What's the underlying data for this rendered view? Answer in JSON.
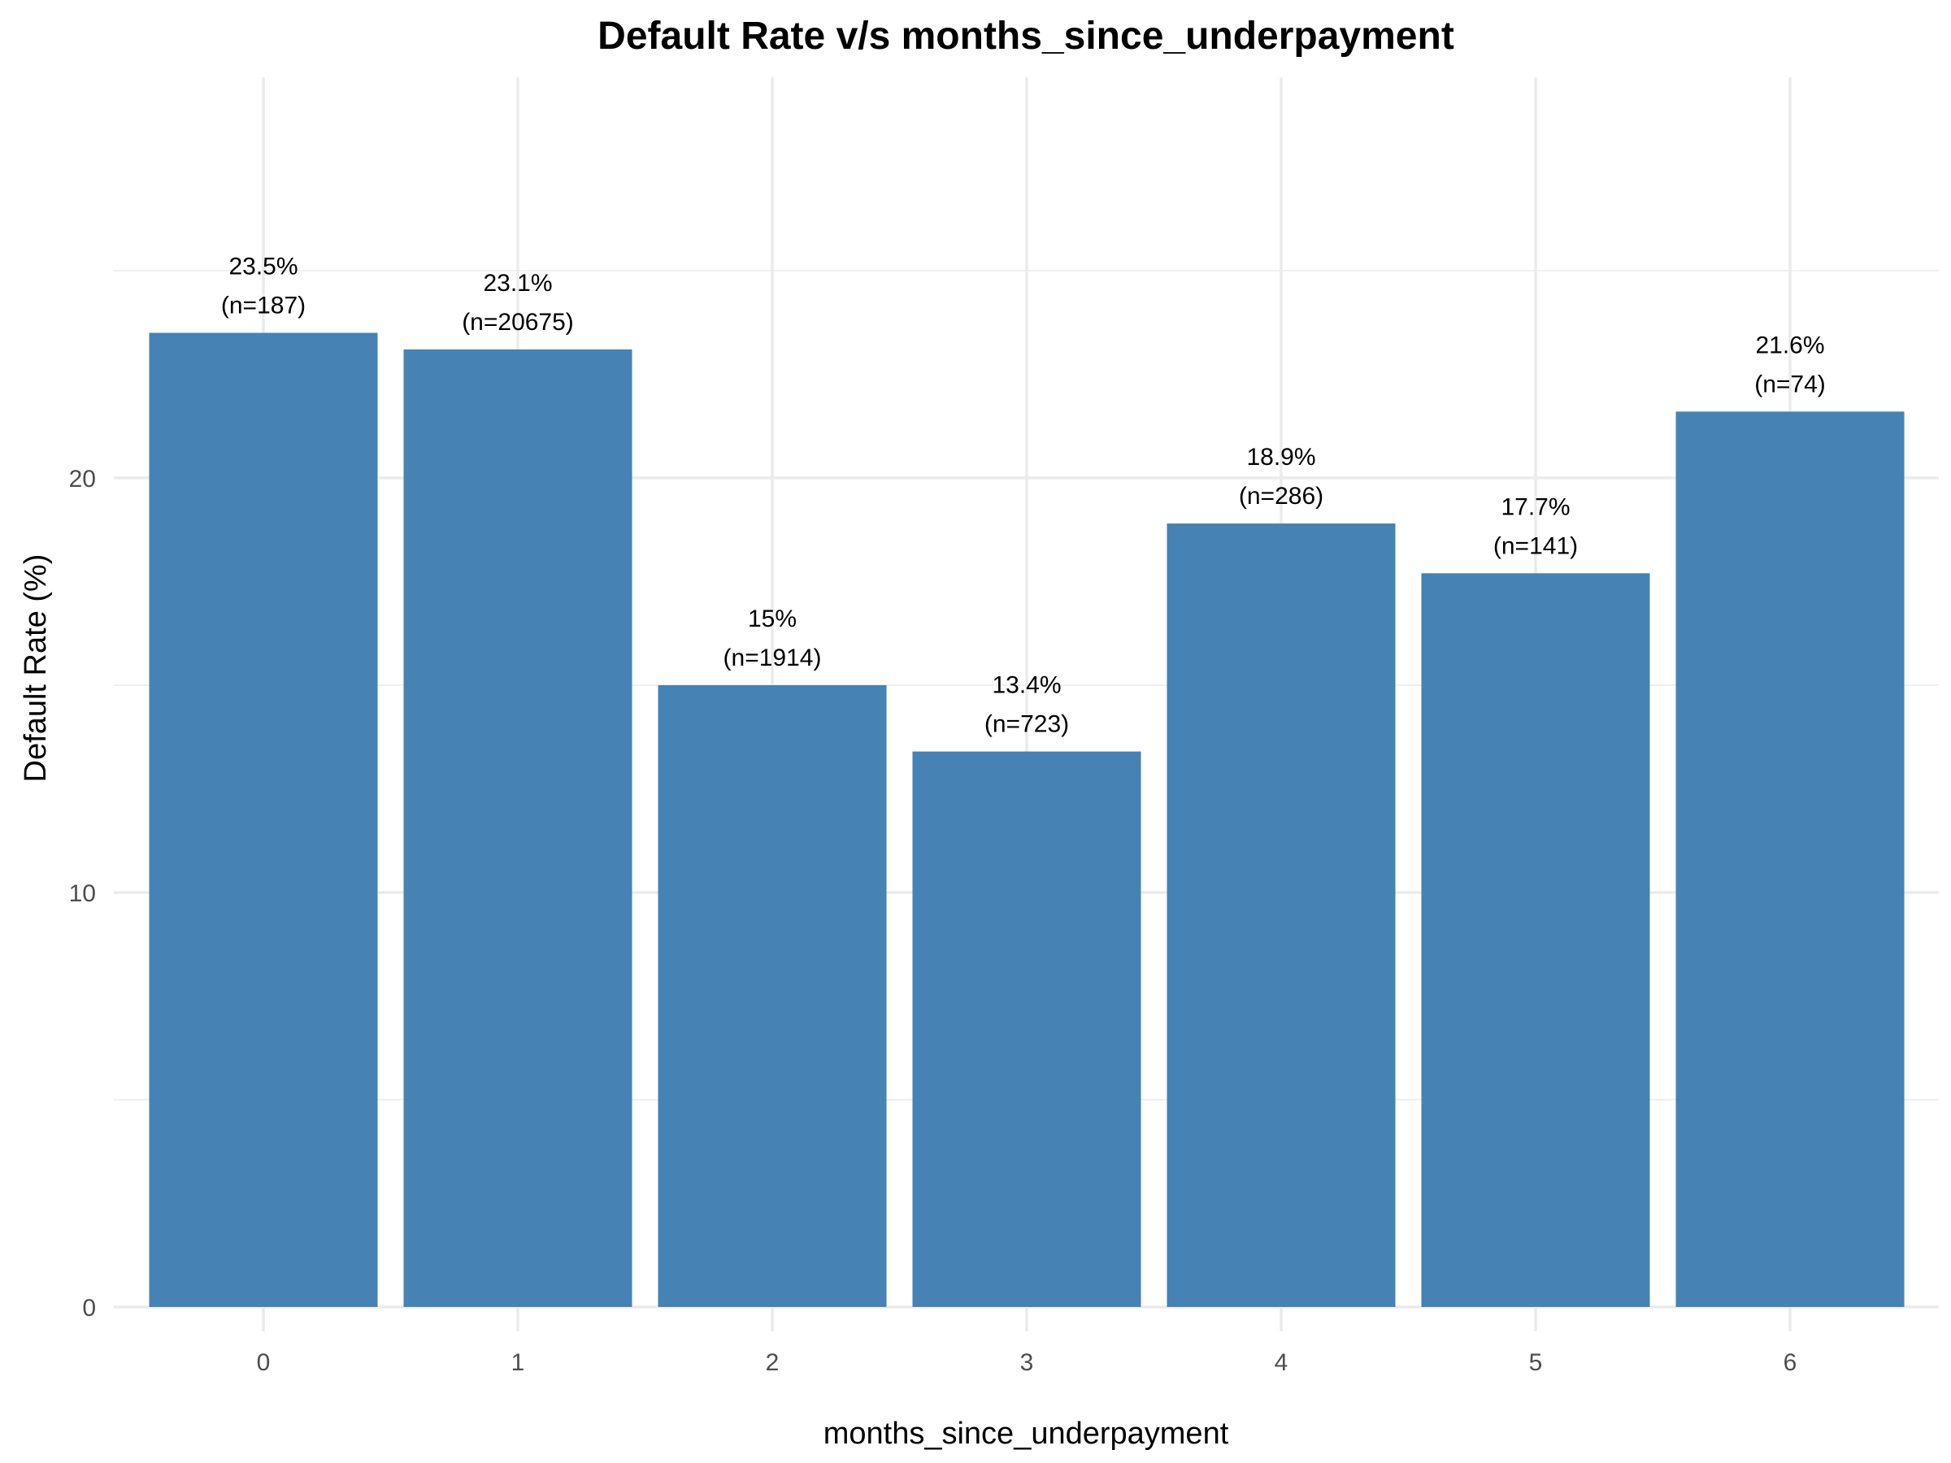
{
  "chart_data": {
    "type": "bar",
    "title": "Default Rate v/s months_since_underpayment",
    "xlabel": "months_since_underpayment",
    "ylabel": "Default Rate (%)",
    "categories": [
      "0",
      "1",
      "2",
      "3",
      "4",
      "5",
      "6"
    ],
    "values": [
      23.5,
      23.1,
      15.0,
      13.4,
      18.9,
      17.7,
      21.6
    ],
    "value_labels": [
      "23.5%",
      "23.1%",
      "15%",
      "13.4%",
      "18.9%",
      "17.7%",
      "21.6%"
    ],
    "count_labels": [
      "(n=187)",
      "(n=20675)",
      "(n=1914)",
      "(n=723)",
      "(n=286)",
      "(n=141)",
      "(n=74)"
    ],
    "y_ticks": [
      0,
      10,
      20
    ],
    "y_tick_labels": [
      "0",
      "10",
      "20"
    ],
    "ylim": [
      0,
      25
    ],
    "grid": true,
    "bar_color": "#4682B4"
  }
}
